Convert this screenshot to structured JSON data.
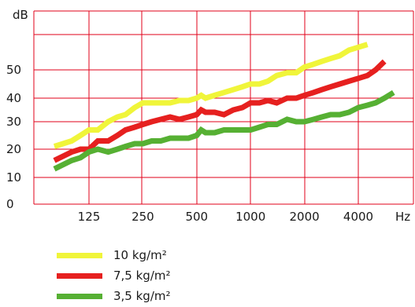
{
  "chart_data": {
    "type": "line",
    "ylabel": "dB",
    "xlabel": "Hz",
    "y_ticks": [
      "0",
      "10",
      "20",
      "30",
      "40",
      "50"
    ],
    "x_ticks": [
      "125",
      "250",
      "500",
      "1000",
      "2000",
      "4000"
    ],
    "grid": true,
    "legend_position": "bottom-left",
    "series": [
      {
        "name": "10 kg/m²",
        "color": "#f0f53a",
        "x": [
          80,
          100,
          112,
          125,
          140,
          160,
          180,
          200,
          225,
          250,
          280,
          315,
          355,
          400,
          450,
          500,
          530,
          560,
          630,
          710,
          800,
          900,
          1000,
          1120,
          1250,
          1400,
          1600,
          1800,
          2000,
          2250,
          2500,
          2800,
          3150,
          3550,
          4000,
          4500
        ],
        "y": [
          21,
          23,
          25,
          27,
          27,
          30,
          32,
          33,
          36,
          38,
          38,
          38,
          38,
          39,
          39,
          40,
          41,
          40,
          41,
          42,
          43,
          44,
          45,
          45,
          46,
          48,
          49,
          49,
          51,
          52,
          53,
          54,
          55,
          57,
          58,
          59
        ]
      },
      {
        "name": "7,5 kg/m²",
        "color": "#e6201f",
        "x": [
          80,
          100,
          112,
          125,
          140,
          160,
          180,
          200,
          225,
          250,
          280,
          315,
          355,
          400,
          450,
          500,
          530,
          560,
          630,
          710,
          800,
          900,
          1000,
          1120,
          1250,
          1400,
          1600,
          1800,
          2000,
          2250,
          2500,
          2800,
          3150,
          3550,
          4000,
          4500,
          5000,
          5600
        ],
        "y": [
          16,
          19,
          20,
          20,
          23,
          23,
          25,
          27,
          28,
          29,
          30,
          31,
          32,
          31,
          32,
          33,
          35,
          34,
          34,
          33,
          35,
          36,
          38,
          38,
          39,
          38,
          40,
          40,
          41,
          42,
          43,
          44,
          45,
          46,
          47,
          48,
          50,
          53
        ]
      },
      {
        "name": "3,5 kg/m²",
        "color": "#56b033",
        "x": [
          80,
          100,
          112,
          125,
          140,
          160,
          180,
          200,
          225,
          250,
          280,
          315,
          355,
          400,
          450,
          500,
          530,
          560,
          630,
          710,
          800,
          900,
          1000,
          1120,
          1250,
          1400,
          1600,
          1800,
          2000,
          2250,
          2500,
          2800,
          3150,
          3550,
          4000,
          4500,
          5000,
          5600,
          6300
        ],
        "y": [
          13,
          16,
          17,
          19,
          20,
          19,
          20,
          21,
          22,
          22,
          23,
          23,
          24,
          24,
          24,
          25,
          27,
          26,
          26,
          27,
          27,
          27,
          27,
          28,
          29,
          29,
          31,
          30,
          30,
          31,
          32,
          33,
          33,
          34,
          36,
          37,
          38,
          40,
          42
        ]
      }
    ]
  }
}
